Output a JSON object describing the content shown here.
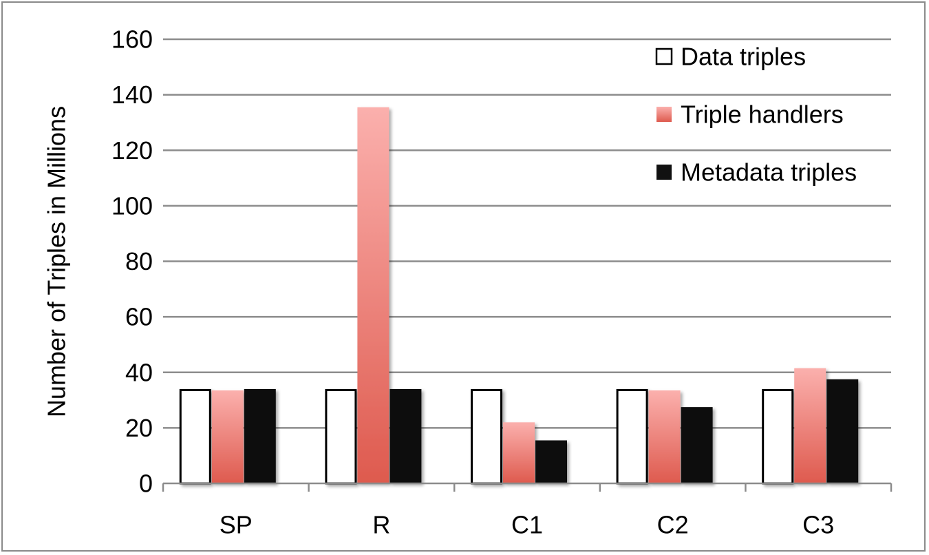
{
  "chart_data": {
    "type": "bar",
    "categories": [
      "SP",
      "R",
      "C1",
      "C2",
      "C3"
    ],
    "series": [
      {
        "name": "Data triples",
        "values": [
          34,
          34,
          34,
          34,
          34
        ],
        "color": "#ffffff",
        "stroke": "#000000"
      },
      {
        "name": "Triple handlers",
        "values": [
          33.5,
          135.5,
          22,
          33.5,
          41.5
        ],
        "color": "#f28880",
        "gradient": [
          "#fbb0ad",
          "#de5a4e"
        ]
      },
      {
        "name": "Metadata triples",
        "values": [
          34,
          34,
          15.5,
          27.5,
          37.5
        ],
        "color": "#111111"
      }
    ],
    "title": "",
    "xlabel": "",
    "ylabel": "Number of Triples in Millions",
    "ylim": [
      0,
      160
    ],
    "yticks": [
      0,
      20,
      40,
      60,
      80,
      100,
      120,
      140,
      160
    ],
    "grid": true,
    "legend_position": "top-right"
  }
}
